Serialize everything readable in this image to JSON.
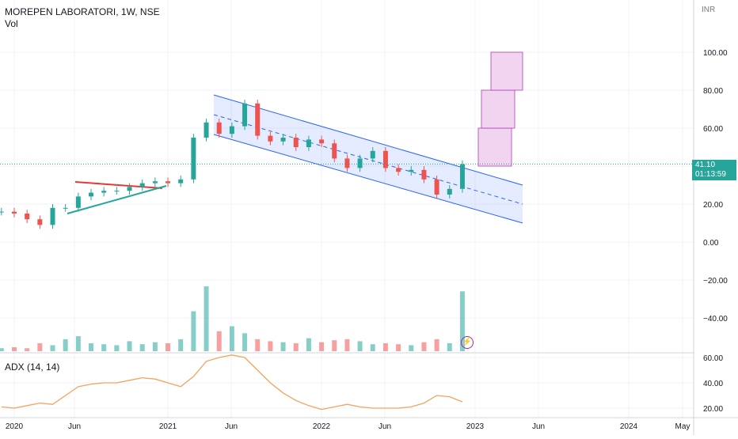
{
  "header": {
    "symbol": "MOREPEN LABORATORI, 1W, NSE",
    "volume_label": "Vol"
  },
  "price_axis": {
    "currency": "INR",
    "last_price": "41.10",
    "countdown": "01:13:59"
  },
  "indicator": {
    "label": "ADX (14, 14)"
  },
  "colors": {
    "up": "#26a69a",
    "down": "#ef5350",
    "channel": "#2962ff",
    "adx": "#f5a35c",
    "box_fill": "#f0d4f0",
    "box_stroke": "#b03fb0"
  },
  "icons": {
    "alert": "lightning-icon"
  },
  "chart_data": [
    {
      "type": "candlestick",
      "title": "MOREPEN LABORATORI, 1W, NSE",
      "ylabel": "INR",
      "ylim": [
        -50,
        120
      ],
      "y_ticks": [
        "100.00",
        "80.00",
        "60.00",
        "20.00",
        "0.00",
        "−20.00",
        "−40.00"
      ],
      "x_ticks": [
        "2020",
        "Jun",
        "2021",
        "Jun",
        "2022",
        "Jun",
        "2023",
        "Jun",
        "2024",
        "May"
      ],
      "last_value": 41.1,
      "series": [
        {
          "x": [
            "2019-12",
            "2020-01",
            "2020-02",
            "2020-03",
            "2020-04",
            "2020-05",
            "2020-06",
            "2020-07",
            "2020-08",
            "2020-09",
            "2020-10",
            "2020-11",
            "2020-12",
            "2021-01",
            "2021-02",
            "2021-03",
            "2021-04",
            "2021-05",
            "2021-06",
            "2021-07",
            "2021-08",
            "2021-09",
            "2021-10",
            "2021-11",
            "2021-12",
            "2022-01",
            "2022-02",
            "2022-03",
            "2022-04",
            "2022-05",
            "2022-06",
            "2022-07",
            "2022-08",
            "2022-09",
            "2022-10",
            "2022-11",
            "2022-12"
          ],
          "values": [
            16,
            15,
            12,
            9,
            18,
            18,
            24,
            26,
            27,
            27,
            29,
            31,
            32,
            31,
            33,
            55,
            63,
            57,
            61,
            73,
            56,
            53,
            55,
            50,
            54,
            52,
            44,
            39,
            44,
            48,
            39,
            37,
            38,
            33,
            25,
            28,
            41
          ]
        }
      ]
    },
    {
      "type": "bar",
      "title": "Vol",
      "series": [
        {
          "x": [
            "2019-12",
            "2020-01",
            "2020-02",
            "2020-03",
            "2020-04",
            "2020-05",
            "2020-06",
            "2020-07",
            "2020-08",
            "2020-09",
            "2020-10",
            "2020-11",
            "2020-12",
            "2021-01",
            "2021-02",
            "2021-03",
            "2021-04",
            "2021-05",
            "2021-06",
            "2021-07",
            "2021-08",
            "2021-09",
            "2021-10",
            "2021-11",
            "2021-12",
            "2022-01",
            "2022-02",
            "2022-03",
            "2022-04",
            "2022-05",
            "2022-06",
            "2022-07",
            "2022-08",
            "2022-09",
            "2022-10",
            "2022-11",
            "2022-12"
          ],
          "values": [
            3,
            4,
            3,
            8,
            6,
            12,
            15,
            8,
            7,
            6,
            10,
            7,
            9,
            8,
            12,
            40,
            65,
            20,
            25,
            18,
            12,
            10,
            9,
            8,
            13,
            9,
            11,
            12,
            10,
            7,
            8,
            7,
            6,
            9,
            12,
            8,
            60
          ]
        }
      ]
    },
    {
      "type": "line",
      "title": "ADX (14, 14)",
      "ylim": [
        15,
        65
      ],
      "y_ticks": [
        "60.00",
        "40.00",
        "20.00"
      ],
      "series": [
        {
          "name": "ADX (14, 14)",
          "x": [
            "2019-12",
            "2020-01",
            "2020-02",
            "2020-03",
            "2020-04",
            "2020-05",
            "2020-06",
            "2020-07",
            "2020-08",
            "2020-09",
            "2020-10",
            "2020-11",
            "2020-12",
            "2021-01",
            "2021-02",
            "2021-03",
            "2021-04",
            "2021-05",
            "2021-06",
            "2021-07",
            "2021-08",
            "2021-09",
            "2021-10",
            "2021-11",
            "2021-12",
            "2022-01",
            "2022-02",
            "2022-03",
            "2022-04",
            "2022-05",
            "2022-06",
            "2022-07",
            "2022-08",
            "2022-09",
            "2022-10",
            "2022-11",
            "2022-12"
          ],
          "values": [
            21,
            20,
            22,
            24,
            23,
            30,
            37,
            39,
            40,
            40,
            42,
            44,
            43,
            40,
            37,
            45,
            57,
            60,
            62,
            60,
            50,
            40,
            32,
            26,
            22,
            19,
            21,
            23,
            21,
            20,
            20,
            20,
            21,
            24,
            30,
            29,
            25
          ]
        }
      ]
    }
  ]
}
